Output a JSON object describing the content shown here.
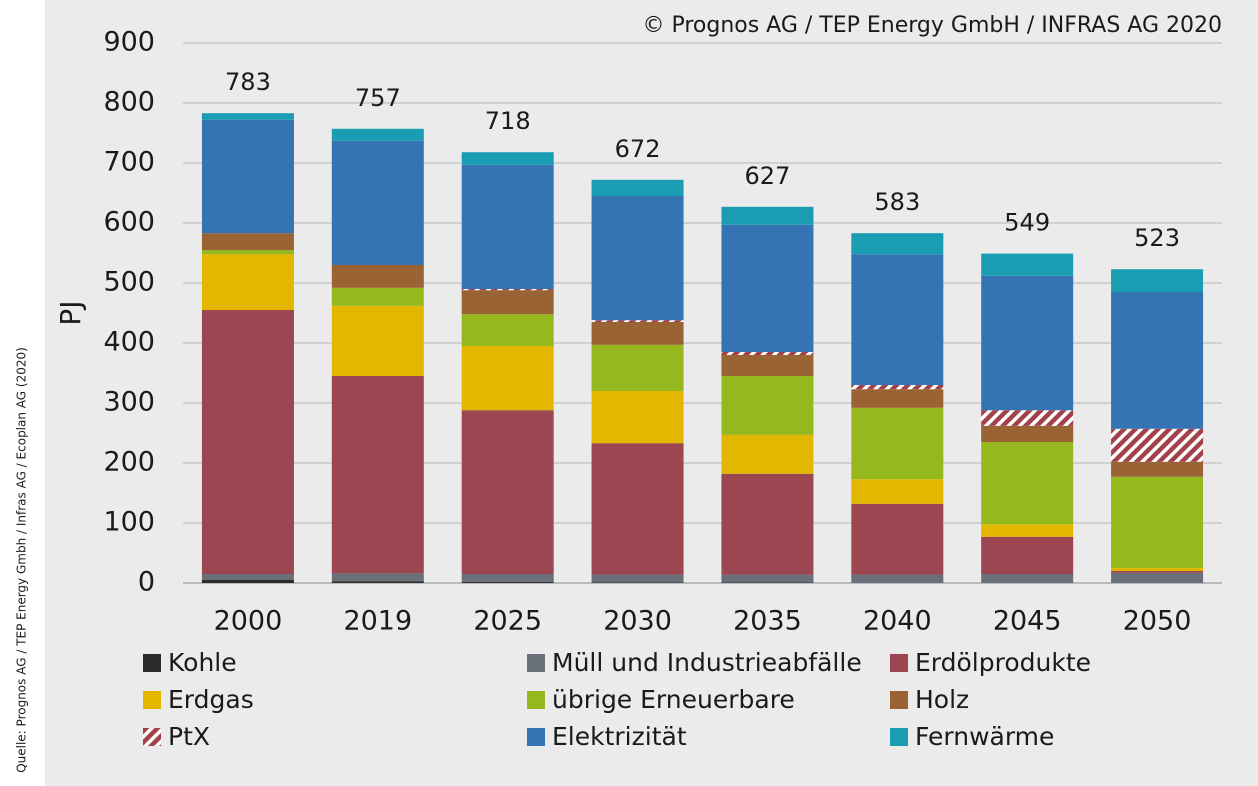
{
  "chart_data": {
    "type": "stacked_bar",
    "source": "Quelle: Prognos AG / TEP Energy Gmbh / Infras AG / Ecoplan AG (2020)",
    "copyright": "© Prognos AG / TEP Energy GmbH / INFRAS AG 2020",
    "y_label": "PJ",
    "categories": [
      "2000",
      "2019",
      "2025",
      "2030",
      "2035",
      "2040",
      "2045",
      "2050"
    ],
    "totals": [
      783,
      757,
      718,
      672,
      627,
      583,
      549,
      523
    ],
    "series": [
      {
        "name": "Kohle",
        "color": "#2b2b2b",
        "values": [
          5,
          3,
          2,
          1,
          1,
          0,
          0,
          0
        ]
      },
      {
        "name": "Müll und Industrieabfälle",
        "color": "#69707a",
        "values": [
          10,
          13,
          13,
          13,
          13,
          14,
          15,
          17
        ]
      },
      {
        "name": "Erdölprodukte",
        "color": "#9b4650",
        "values": [
          440,
          329,
          273,
          219,
          168,
          118,
          62,
          3
        ]
      },
      {
        "name": "Erdgas",
        "color": "#e3b600",
        "values": [
          93,
          117,
          107,
          87,
          65,
          41,
          21,
          5
        ]
      },
      {
        "name": "übrige Erneuerbare",
        "color": "#95b81f",
        "values": [
          7,
          30,
          53,
          77,
          98,
          119,
          137,
          152
        ]
      },
      {
        "name": "Holz",
        "color": "#9a6334",
        "values": [
          28,
          38,
          40,
          38,
          35,
          31,
          27,
          25
        ]
      },
      {
        "name": "PtX",
        "color": "#a2414a",
        "hatch": true,
        "values": [
          0,
          0,
          2,
          3,
          5,
          7,
          26,
          55
        ]
      },
      {
        "name": "Elektrizität",
        "color": "#3574b3",
        "values": [
          189,
          207,
          207,
          207,
          212,
          218,
          224,
          228
        ]
      },
      {
        "name": "Fernwärme",
        "color": "#1a9db3",
        "values": [
          11,
          20,
          21,
          27,
          30,
          35,
          37,
          38
        ]
      }
    ],
    "ylim": [
      0,
      900
    ],
    "yticks": [
      0,
      100,
      200,
      300,
      400,
      500,
      600,
      700,
      800,
      900
    ],
    "grid": true
  }
}
